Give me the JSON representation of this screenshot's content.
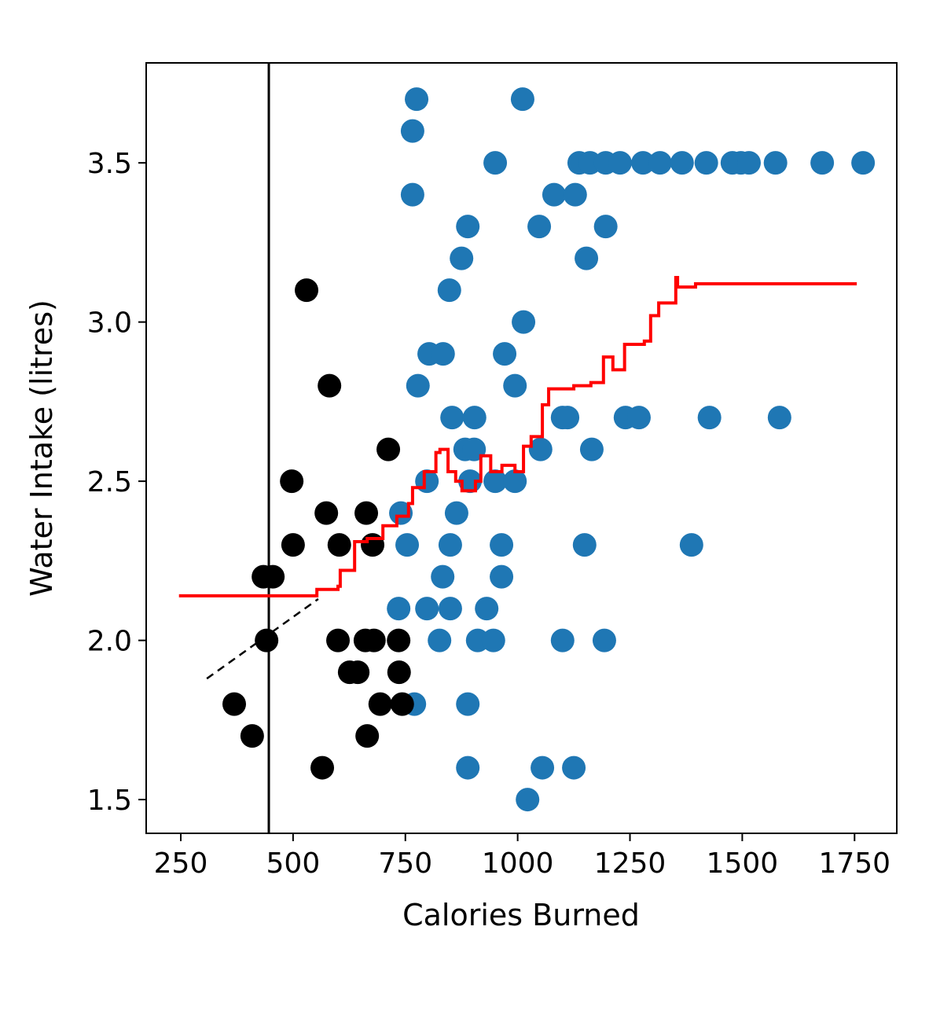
{
  "chart_data": {
    "type": "scatter",
    "title": "",
    "xlabel": "Calories Burned",
    "ylabel": "Water Intake (litres)",
    "xlim": [
      173,
      1844
    ],
    "ylim": [
      1.394,
      3.814
    ],
    "xticks": [
      250,
      500,
      750,
      1000,
      1250,
      1500,
      1750
    ],
    "yticks": [
      1.5,
      2.0,
      2.5,
      3.0,
      3.5
    ],
    "xtick_labels": [
      "250",
      "500",
      "750",
      "1000",
      "1250",
      "1500",
      "1750"
    ],
    "ytick_labels": [
      "1.5",
      "2.0",
      "2.5",
      "3.0",
      "3.5"
    ],
    "grid": false,
    "colors": {
      "blue": "#1f77b4",
      "black": "#000000",
      "red": "#ff0000"
    },
    "series": [
      {
        "color": "#1f77b4",
        "points": [
          [
            775,
            3.7
          ],
          [
            1011,
            3.7
          ],
          [
            766,
            3.6
          ],
          [
            950,
            3.5
          ],
          [
            1137,
            3.5
          ],
          [
            1161,
            3.5
          ],
          [
            1196,
            3.5
          ],
          [
            1228,
            3.5
          ],
          [
            1279,
            3.5
          ],
          [
            1317,
            3.5
          ],
          [
            1366,
            3.5
          ],
          [
            1420,
            3.5
          ],
          [
            1478,
            3.5
          ],
          [
            1497,
            3.5
          ],
          [
            1515,
            3.5
          ],
          [
            1574,
            3.5
          ],
          [
            1678,
            3.5
          ],
          [
            1769,
            3.5
          ],
          [
            766,
            3.4
          ],
          [
            1081,
            3.4
          ],
          [
            1128,
            3.4
          ],
          [
            889,
            3.3
          ],
          [
            1048,
            3.3
          ],
          [
            1196,
            3.3
          ],
          [
            875,
            3.2
          ],
          [
            1153,
            3.2
          ],
          [
            848,
            3.1
          ],
          [
            1013,
            3.0
          ],
          [
            803,
            2.9
          ],
          [
            834,
            2.9
          ],
          [
            971,
            2.9
          ],
          [
            778,
            2.8
          ],
          [
            994,
            2.8
          ],
          [
            854,
            2.7
          ],
          [
            904,
            2.7
          ],
          [
            1100,
            2.7
          ],
          [
            1111,
            2.7
          ],
          [
            1240,
            2.7
          ],
          [
            1270,
            2.7
          ],
          [
            1427,
            2.7
          ],
          [
            1583,
            2.7
          ],
          [
            883,
            2.6
          ],
          [
            903,
            2.6
          ],
          [
            1051,
            2.6
          ],
          [
            1165,
            2.6
          ],
          [
            798,
            2.5
          ],
          [
            894,
            2.5
          ],
          [
            950,
            2.5
          ],
          [
            994,
            2.5
          ],
          [
            740,
            2.4
          ],
          [
            864,
            2.4
          ],
          [
            754,
            2.3
          ],
          [
            850,
            2.3
          ],
          [
            964,
            2.3
          ],
          [
            1149,
            2.3
          ],
          [
            1387,
            2.3
          ],
          [
            833,
            2.2
          ],
          [
            964,
            2.2
          ],
          [
            735,
            2.1
          ],
          [
            798,
            2.1
          ],
          [
            850,
            2.1
          ],
          [
            931,
            2.1
          ],
          [
            826,
            2.0
          ],
          [
            911,
            2.0
          ],
          [
            946,
            2.0
          ],
          [
            1100,
            2.0
          ],
          [
            1193,
            2.0
          ],
          [
            770,
            1.8
          ],
          [
            889,
            1.8
          ],
          [
            889,
            1.6
          ],
          [
            1055,
            1.6
          ],
          [
            1125,
            1.6
          ],
          [
            1022,
            1.5
          ]
        ]
      },
      {
        "color": "#000000",
        "points": [
          [
            530,
            3.1
          ],
          [
            581,
            2.8
          ],
          [
            712,
            2.6
          ],
          [
            497,
            2.5
          ],
          [
            574,
            2.4
          ],
          [
            663,
            2.4
          ],
          [
            500,
            2.3
          ],
          [
            603,
            2.3
          ],
          [
            677,
            2.3
          ],
          [
            434,
            2.2
          ],
          [
            455,
            2.2
          ],
          [
            441,
            2.0
          ],
          [
            600,
            2.0
          ],
          [
            661,
            2.0
          ],
          [
            680,
            2.0
          ],
          [
            735,
            2.0
          ],
          [
            626,
            1.9
          ],
          [
            644,
            1.9
          ],
          [
            736,
            1.9
          ],
          [
            369,
            1.8
          ],
          [
            694,
            1.8
          ],
          [
            743,
            1.8
          ],
          [
            409,
            1.7
          ],
          [
            665,
            1.7
          ],
          [
            565,
            1.6
          ]
        ]
      }
    ],
    "step_line": {
      "color": "#ff0000",
      "points": [
        [
          246,
          2.14
        ],
        [
          553,
          2.14
        ],
        [
          553,
          2.16
        ],
        [
          600,
          2.17
        ],
        [
          605,
          2.22
        ],
        [
          634,
          2.22
        ],
        [
          637,
          2.31
        ],
        [
          665,
          2.32
        ],
        [
          700,
          2.36
        ],
        [
          731,
          2.39
        ],
        [
          757,
          2.43
        ],
        [
          766,
          2.48
        ],
        [
          792,
          2.53
        ],
        [
          818,
          2.59
        ],
        [
          827,
          2.6
        ],
        [
          845,
          2.53
        ],
        [
          862,
          2.5
        ],
        [
          876,
          2.47
        ],
        [
          906,
          2.5
        ],
        [
          918,
          2.58
        ],
        [
          940,
          2.53
        ],
        [
          965,
          2.55
        ],
        [
          994,
          2.53
        ],
        [
          1013,
          2.61
        ],
        [
          1030,
          2.64
        ],
        [
          1055,
          2.74
        ],
        [
          1069,
          2.79
        ],
        [
          1125,
          2.8
        ],
        [
          1163,
          2.81
        ],
        [
          1191,
          2.89
        ],
        [
          1212,
          2.85
        ],
        [
          1238,
          2.93
        ],
        [
          1282,
          2.94
        ],
        [
          1296,
          3.02
        ],
        [
          1314,
          3.06
        ],
        [
          1349,
          3.06
        ],
        [
          1352,
          3.14
        ],
        [
          1356,
          3.11
        ],
        [
          1396,
          3.12
        ],
        [
          1755,
          3.12
        ]
      ]
    },
    "dashed_line": {
      "color": "#000000",
      "points": [
        [
          308,
          1.88
        ],
        [
          556,
          2.13
        ]
      ]
    },
    "vertical_line": {
      "color": "#000000",
      "x": 446
    }
  }
}
